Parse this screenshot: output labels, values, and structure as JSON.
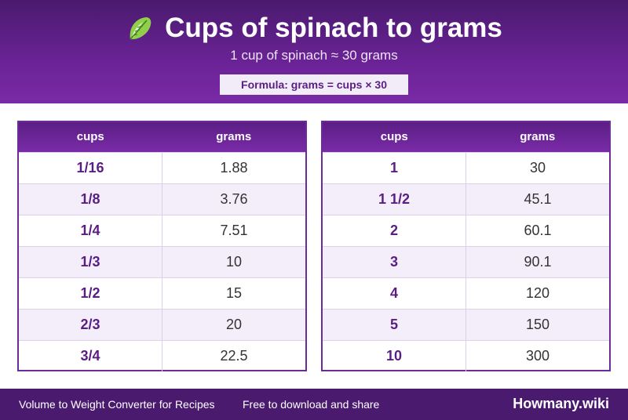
{
  "header": {
    "title": "Cups of spinach to grams",
    "subtitle": "1 cup of spinach ≈ 30 grams",
    "formula": "Formula: grams = cups × 30",
    "icon": "leafy-green-icon"
  },
  "tables": {
    "left": {
      "headers": [
        "cups",
        "grams"
      ],
      "rows": [
        [
          "1/16",
          "1.88"
        ],
        [
          "1/8",
          "3.76"
        ],
        [
          "1/4",
          "7.51"
        ],
        [
          "1/3",
          "10"
        ],
        [
          "1/2",
          "15"
        ],
        [
          "2/3",
          "20"
        ],
        [
          "3/4",
          "22.5"
        ]
      ]
    },
    "right": {
      "headers": [
        "cups",
        "grams"
      ],
      "rows": [
        [
          "1",
          "30"
        ],
        [
          "1 1/2",
          "45.1"
        ],
        [
          "2",
          "60.1"
        ],
        [
          "3",
          "90.1"
        ],
        [
          "4",
          "120"
        ],
        [
          "5",
          "150"
        ],
        [
          "10",
          "300"
        ]
      ]
    }
  },
  "footer": {
    "left_text": "Volume to Weight Converter for Recipes",
    "middle_text": "Free to download and share",
    "brand": "Howmany.wiki"
  },
  "colors": {
    "primary": "#6a2396",
    "dark": "#4a1a6e",
    "alt_row": "#f4eefa"
  }
}
